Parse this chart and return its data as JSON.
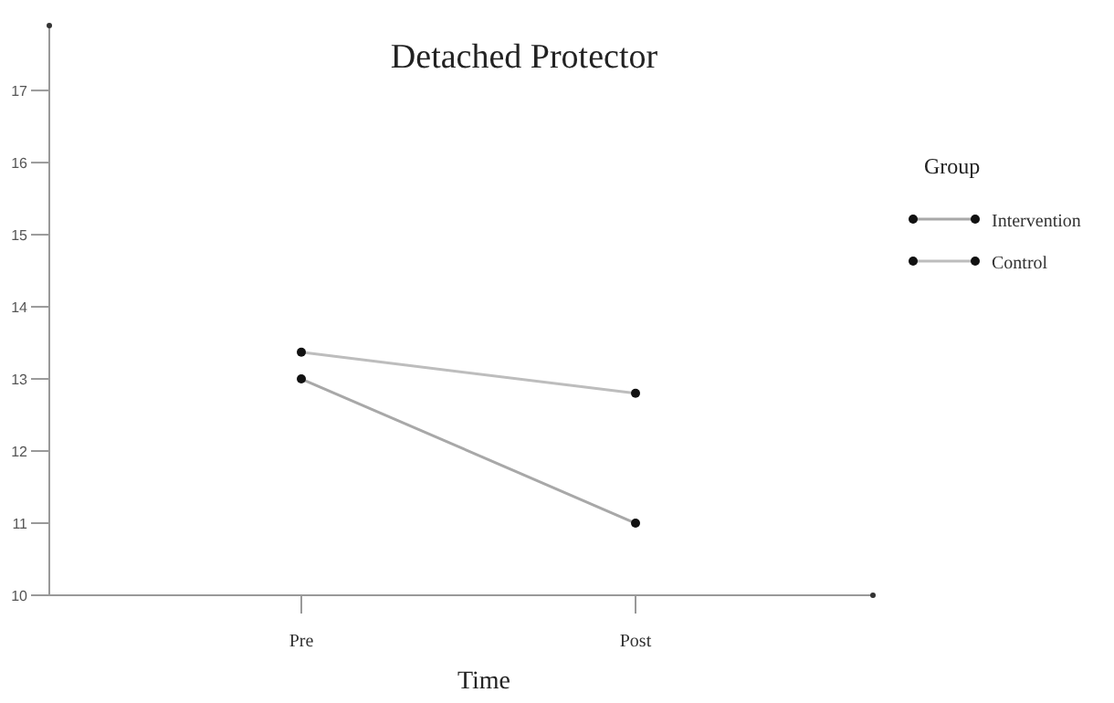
{
  "chart_data": {
    "type": "line",
    "title": "Detached Protector",
    "xlabel": "Time",
    "legend_title": "Group",
    "categories": [
      "Pre",
      "Post"
    ],
    "series": [
      {
        "name": "Intervention",
        "color": "#a8a8a8",
        "values": [
          13.0,
          11.0
        ]
      },
      {
        "name": "Control",
        "color": "#bdbdbd",
        "values": [
          13.37,
          12.8
        ]
      }
    ],
    "ylim": [
      10,
      17.9
    ],
    "yticks": [
      10,
      11,
      12,
      13,
      14,
      15,
      16,
      17
    ],
    "marker": "circle",
    "line_style": "solid",
    "legend": "top right",
    "grid": false
  }
}
